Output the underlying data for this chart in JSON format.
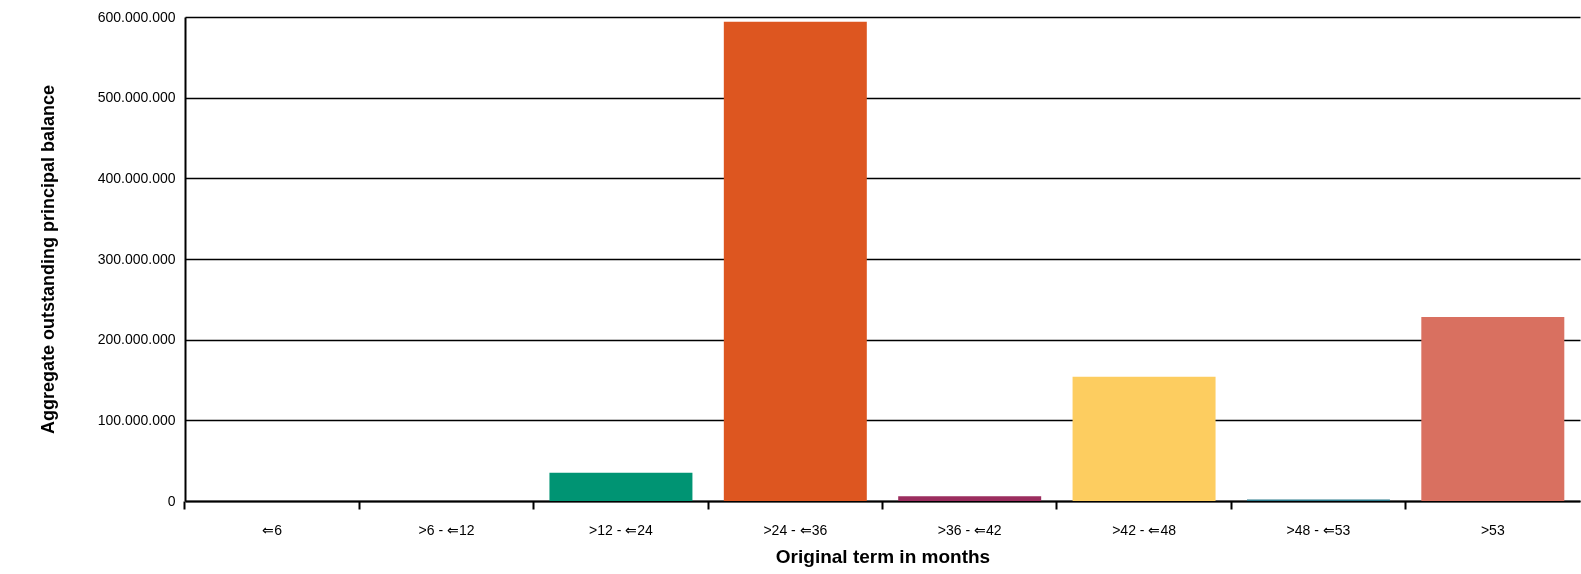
{
  "chart_data": {
    "type": "bar",
    "xlabel": "Original term in months",
    "ylabel": "Aggregate outstanding principal balance",
    "categories": [
      "⇐6",
      ">6 - ⇐12",
      ">12 - ⇐24",
      ">24 - ⇐36",
      ">36 - ⇐42",
      ">42 - ⇐48",
      ">48 - ⇐53",
      ">53"
    ],
    "values": [
      0,
      0,
      35000000,
      594000000,
      6000000,
      154000000,
      2000000,
      228000000
    ],
    "colors": [
      "#009473",
      "#009473",
      "#009473",
      "#dd5620",
      "#9b2d5e",
      "#fdcd60",
      "#2a7a8c",
      "#d97060"
    ],
    "ylim": [
      0,
      600000000
    ],
    "yticks": [
      {
        "value": 0,
        "label": "0"
      },
      {
        "value": 100000000,
        "label": "100.000.000"
      },
      {
        "value": 200000000,
        "label": "200.000.000"
      },
      {
        "value": 300000000,
        "label": "300.000.000"
      },
      {
        "value": 400000000,
        "label": "400.000.000"
      },
      {
        "value": 500000000,
        "label": "500.000.000"
      },
      {
        "value": 600000000,
        "label": "600.000.000"
      }
    ],
    "grid": "y"
  }
}
